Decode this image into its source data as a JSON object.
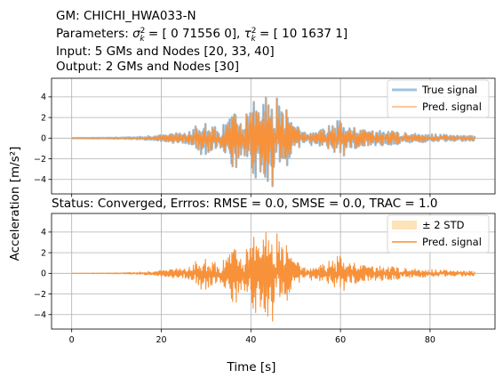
{
  "header": {
    "gm_line": "GM: CHICHI_HWA033-N",
    "params_prefix": "Parameters: ",
    "sigma_values": " = [    0 71556     0], ",
    "tau_values": " = [  10 1637    1]",
    "input_line": "Input: 5 GMs and Nodes [20, 33, 40]",
    "output_line": "Output: 2 GMs and Nodes [30]"
  },
  "status_line": "Status: Converged, Errros: RMSE = 0.0, SMSE = 0.0, TRAC = 1.0",
  "colors": {
    "true_signal": "#9ec3e0",
    "pred_signal": "#f7913a",
    "band": "#fde3b8",
    "grid": "#b0b0b0"
  },
  "chart_data": [
    {
      "type": "line",
      "panel": "top",
      "xlim": [
        -4.5,
        94.5
      ],
      "ylim": [
        -5.4,
        5.8
      ],
      "grid": true,
      "legend_position": "top-right",
      "xticks": [
        0,
        20,
        40,
        60,
        80
      ],
      "xtick_labels_visible": false,
      "yticks": [
        -4,
        -2,
        0,
        2,
        4
      ],
      "ytick_labels": [
        "−4",
        "−2",
        "0",
        "2",
        "4"
      ],
      "xlabel": "",
      "ylabel": "Acceleration [m/s²]",
      "series": [
        {
          "name": "True signal",
          "style": "wide-line",
          "color": "#9ec3e0"
        },
        {
          "name": "Pred. signal",
          "style": "thin-line",
          "color": "#f7913a"
        }
      ],
      "signal": {
        "x_range": [
          0,
          90
        ],
        "envelope_time": [
          0,
          10,
          15,
          20,
          25,
          28,
          30,
          33,
          35,
          36,
          38,
          40,
          41,
          42,
          43,
          44,
          45,
          46,
          47,
          48,
          50,
          52,
          55,
          58,
          60,
          62,
          63,
          65,
          68,
          70,
          75,
          80,
          85,
          90
        ],
        "envelope_amplitude": [
          0.0,
          0.05,
          0.12,
          0.3,
          0.6,
          1.4,
          1.8,
          0.9,
          2.0,
          3.3,
          2.0,
          3.0,
          4.4,
          3.2,
          5.2,
          4.4,
          4.8,
          4.2,
          3.8,
          3.1,
          1.2,
          0.7,
          0.8,
          1.3,
          1.9,
          1.6,
          1.2,
          1.0,
          0.7,
          0.8,
          0.5,
          0.4,
          0.3,
          0.3
        ]
      }
    },
    {
      "type": "area",
      "panel": "bottom",
      "xlim": [
        -4.5,
        94.5
      ],
      "ylim": [
        -5.4,
        5.8
      ],
      "grid": true,
      "legend_position": "top-right",
      "xticks": [
        0,
        20,
        40,
        60,
        80
      ],
      "xtick_labels": [
        "0",
        "20",
        "40",
        "60",
        "80"
      ],
      "yticks": [
        -4,
        -2,
        0,
        2,
        4
      ],
      "ytick_labels": [
        "−4",
        "−2",
        "0",
        "2",
        "4"
      ],
      "xlabel": "Time [s]",
      "series": [
        {
          "name": "± 2 STD",
          "style": "band",
          "color": "#fde3b8"
        },
        {
          "name": "Pred. signal",
          "style": "line",
          "color": "#f7913a"
        }
      ],
      "signal": {
        "x_range": [
          0,
          90
        ],
        "envelope_time": [
          0,
          10,
          15,
          20,
          25,
          28,
          30,
          33,
          35,
          36,
          38,
          40,
          41,
          42,
          43,
          44,
          45,
          46,
          47,
          48,
          50,
          52,
          55,
          58,
          60,
          62,
          63,
          65,
          68,
          70,
          75,
          80,
          85,
          90
        ],
        "envelope_amplitude": [
          0.0,
          0.05,
          0.12,
          0.3,
          0.6,
          1.4,
          1.8,
          0.9,
          2.0,
          3.3,
          2.0,
          3.0,
          4.4,
          3.2,
          5.2,
          4.4,
          4.8,
          4.2,
          3.8,
          3.1,
          1.2,
          0.7,
          0.8,
          1.3,
          1.9,
          1.6,
          1.2,
          1.0,
          0.7,
          0.8,
          0.5,
          0.4,
          0.3,
          0.3
        ]
      }
    }
  ]
}
